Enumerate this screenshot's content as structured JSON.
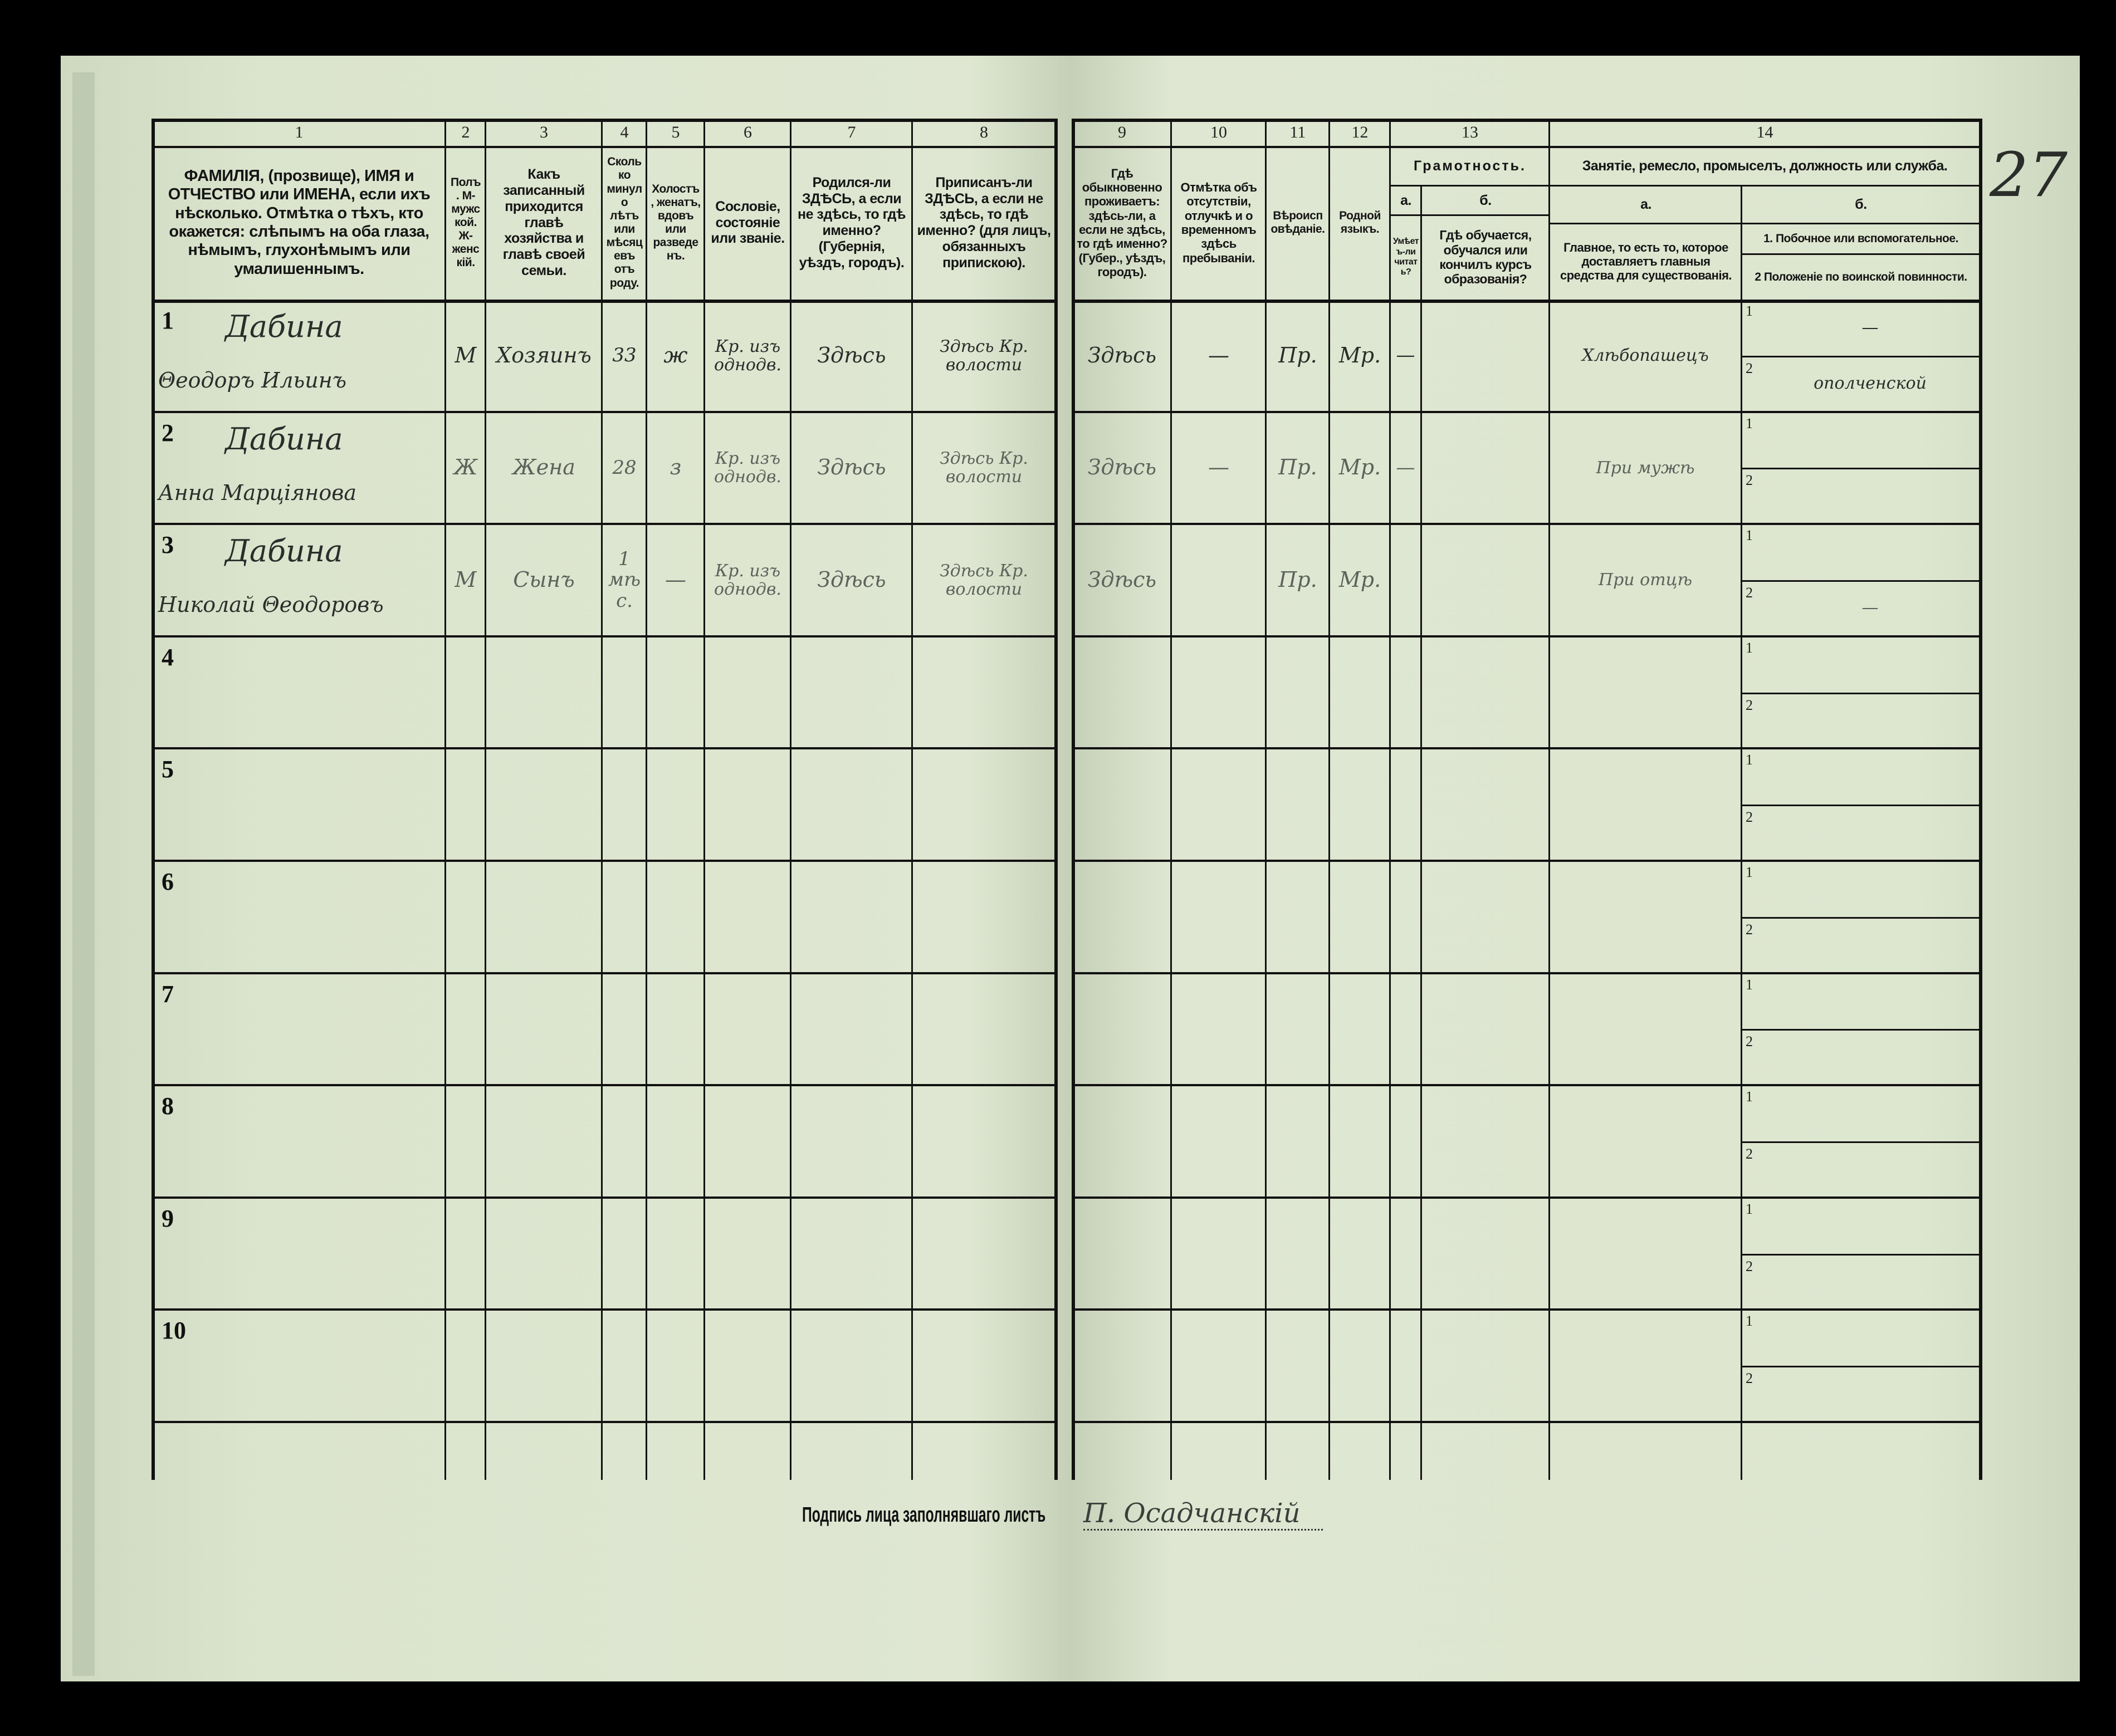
{
  "form": {
    "signature_label": "Подпись лица заполнявшаго листъ",
    "signature": "П. Осадчанскій",
    "page_mark": "27",
    "paper_color": "#dfe7d2",
    "ink_color": "#111111"
  },
  "columns": [
    {
      "n": "1",
      "text": "ФАМИЛІЯ, (прозвище), ИМЯ и ОТЧЕСТВО или ИМЕНА, если ихъ нѣсколько. Отмѣтка о тѣхъ, кто окажется: слѣпымъ на оба глаза, нѣмымъ, глухонѣмымъ или умалишеннымъ."
    },
    {
      "n": "2",
      "text": "Полъ. М-мужской. Ж-женскій."
    },
    {
      "n": "3",
      "text": "Какъ записанный приходится главѣ хозяйства и главѣ своей семьи."
    },
    {
      "n": "4",
      "text": "Сколько минуло лѣтъ или мѣсяцевъ отъ роду."
    },
    {
      "n": "5",
      "text": "Холостъ, женатъ, вдовъ или разведенъ."
    },
    {
      "n": "6",
      "text": "Сословіе, состояніе или званіе."
    },
    {
      "n": "7",
      "text": "Родился-ли ЗДѢСЬ, а если не здѣсь, то гдѣ именно? (Губернія, уѣздъ, городъ)."
    },
    {
      "n": "8",
      "text": "Приписанъ-ли ЗДѢСЬ, а если не здѣсь, то гдѣ именно? (для лицъ, обязанныхъ припискою)."
    },
    {
      "n": "9",
      "text": "Гдѣ обыкновенно проживаетъ: здѣсь-ли, а если не здѣсь, то гдѣ именно? (Губер., уѣздъ, городъ)."
    },
    {
      "n": "10",
      "text": "Отмѣтка объ отсутствіи, отлучкѣ и о временномъ здѣсь пребываніи."
    },
    {
      "n": "11",
      "text": "Вѣроисповѣданіе."
    },
    {
      "n": "12",
      "text": "Родной языкъ."
    },
    {
      "n": "13",
      "title": "Грамотность.",
      "a": "а.",
      "b": "б.",
      "a_text": "Умѣетъ-ли читать?",
      "b_text": "Гдѣ обучается, обучался или кончилъ курсъ образованія?"
    },
    {
      "n": "14",
      "title": "Занятіе, ремесло, промыселъ, должность или служба.",
      "a": "а.",
      "b": "б.",
      "a_text": "Главное, то есть то, которое доставляетъ главныя средства для существованія.",
      "b1_text": "1. Побочное или вспомогательное.",
      "b2_text": "2 Положеніе по воинской повинности."
    }
  ],
  "sub_labels": {
    "one": "1",
    "two": "2"
  },
  "rows": [
    {
      "n": "1",
      "surname": "Дабина",
      "name": "Θеодоръ Ильинъ",
      "sex": "М",
      "relation": "Хозяинъ",
      "age": "33",
      "marital": "ж",
      "estate": "Кр. изъ однодв.",
      "born": "Здѣсь",
      "registered": "Здѣсь Кр. волости",
      "resides": "Здѣсь",
      "absence": "—",
      "religion": "Пр.",
      "language": "Мр.",
      "literacy": "—",
      "occupation": "Хлѣбопашецъ",
      "secondary": "—",
      "military": "ополченской"
    },
    {
      "n": "2",
      "surname": "Дабина",
      "name": "Анна Марціянова",
      "sex": "Ж",
      "relation": "Жена",
      "age": "28",
      "marital": "з",
      "estate": "Кр. изъ однодв.",
      "born": "Здѣсь",
      "registered": "Здѣсь Кр. волости",
      "resides": "Здѣсь",
      "absence": "—",
      "religion": "Пр.",
      "language": "Мр.",
      "literacy": "—",
      "occupation": "При мужѣ",
      "secondary": "",
      "military": ""
    },
    {
      "n": "3",
      "surname": "Дабина",
      "name": "Николай Θеодоровъ",
      "sex": "М",
      "relation": "Сынъ",
      "age": "1 мѣс.",
      "marital": "—",
      "estate": "Кр. изъ однодв.",
      "born": "Здѣсь",
      "registered": "Здѣсь Кр. волости",
      "resides": "Здѣсь",
      "absence": "",
      "religion": "Пр.",
      "language": "Мр.",
      "literacy": "",
      "occupation": "При отцѣ",
      "secondary": "",
      "military": "—"
    },
    {
      "n": "4"
    },
    {
      "n": "5"
    },
    {
      "n": "6"
    },
    {
      "n": "7"
    },
    {
      "n": "8"
    },
    {
      "n": "9"
    },
    {
      "n": "10"
    }
  ]
}
